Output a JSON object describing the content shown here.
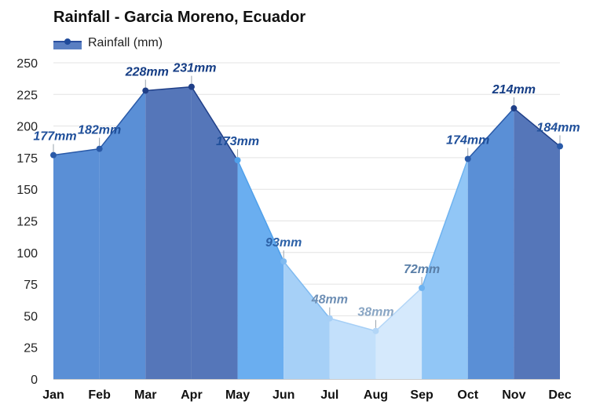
{
  "chart_data": {
    "type": "area",
    "title": "Rainfall - Garcia Moreno, Ecuador",
    "categories": [
      "Jan",
      "Feb",
      "Mar",
      "Apr",
      "May",
      "Jun",
      "Jul",
      "Aug",
      "Sep",
      "Oct",
      "Nov",
      "Dec"
    ],
    "series": [
      {
        "name": "Rainfall (mm)",
        "values": [
          177,
          182,
          228,
          231,
          173,
          93,
          48,
          38,
          72,
          174,
          214,
          184
        ],
        "labels": [
          "177mm",
          "182mm",
          "228mm",
          "231mm",
          "173mm",
          "93mm",
          "48mm",
          "38mm",
          "72mm",
          "174mm",
          "214mm",
          "184mm"
        ]
      }
    ],
    "ylim": [
      0,
      250
    ],
    "yticks": [
      0,
      25,
      50,
      75,
      100,
      125,
      150,
      175,
      200,
      225,
      250
    ],
    "grid": true,
    "legend": "top-left",
    "colors": {
      "band_fill": [
        "#5a8fd6",
        "#5a8fd6",
        "#5576b9",
        "#5576b9",
        "#6aaef0",
        "#a6d0f7",
        "#c3e0fb",
        "#d5e9fc",
        "#91c6f6",
        "#5a8fd6",
        "#5576b9",
        "#5a8fd6"
      ],
      "series_line": [
        "#2a5aa8",
        "#2a5aa8",
        "#1f3f88",
        "#1f3f88",
        "#4fa0ea",
        "#7fbaf0",
        "#a6cff6",
        "#b3d6f7",
        "#6fb3f0",
        "#2a5aa8",
        "#1f3f88",
        "#2a5aa8"
      ],
      "label_text": [
        "#1f4f9a",
        "#1f4f9a",
        "#153d85",
        "#153d85",
        "#1f4f9a",
        "#2d62a8",
        "#6e8fb5",
        "#8aa6c4",
        "#5a7fa8",
        "#1f4f9a",
        "#153d85",
        "#1f4f9a"
      ]
    }
  }
}
